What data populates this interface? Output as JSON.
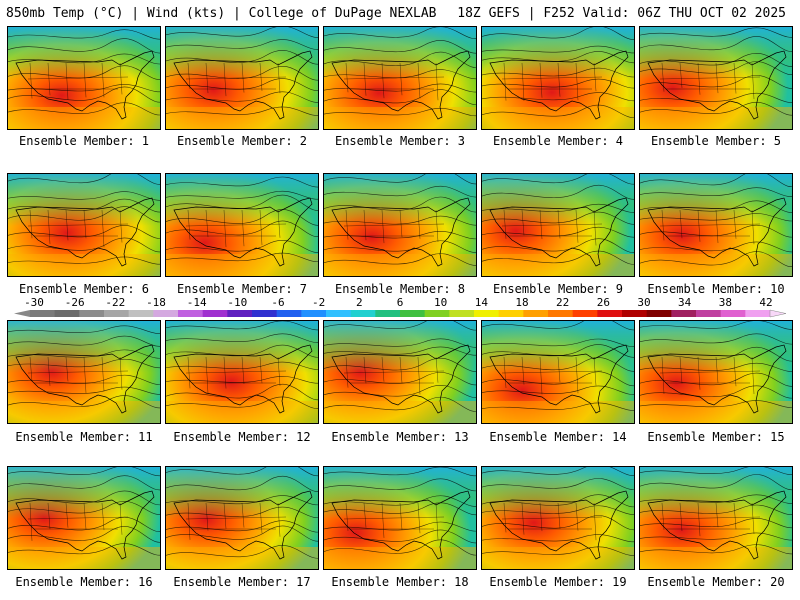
{
  "header": {
    "left": "850mb Temp (°C) | Wind (kts) | College of DuPage NEXLAB",
    "right": "18Z GEFS | F252 Valid: 06Z THU OCT 02 2025"
  },
  "panels": [
    {
      "caption": "Ensemble Member: 1"
    },
    {
      "caption": "Ensemble Member: 2"
    },
    {
      "caption": "Ensemble Member: 3"
    },
    {
      "caption": "Ensemble Member: 4"
    },
    {
      "caption": "Ensemble Member: 5"
    },
    {
      "caption": "Ensemble Member: 6"
    },
    {
      "caption": "Ensemble Member: 7"
    },
    {
      "caption": "Ensemble Member: 8"
    },
    {
      "caption": "Ensemble Member: 9"
    },
    {
      "caption": "Ensemble Member: 10"
    },
    {
      "caption": "Ensemble Member: 11"
    },
    {
      "caption": "Ensemble Member: 12"
    },
    {
      "caption": "Ensemble Member: 13"
    },
    {
      "caption": "Ensemble Member: 14"
    },
    {
      "caption": "Ensemble Member: 15"
    },
    {
      "caption": "Ensemble Member: 16"
    },
    {
      "caption": "Ensemble Member: 17"
    },
    {
      "caption": "Ensemble Member: 18"
    },
    {
      "caption": "Ensemble Member: 19"
    },
    {
      "caption": "Ensemble Member: 20"
    }
  ],
  "colorbar": {
    "labels": [
      "-30",
      "-26",
      "-22",
      "-18",
      "-14",
      "-10",
      "-6",
      "-2",
      "2",
      "6",
      "10",
      "14",
      "18",
      "22",
      "26",
      "30",
      "34",
      "38",
      "42"
    ],
    "colors": [
      "#7a7a7a",
      "#6b6b6b",
      "#8c8c8c",
      "#a6a6a6",
      "#c0c0c0",
      "#d4a8e0",
      "#c060e0",
      "#a030d0",
      "#6020c0",
      "#3030d0",
      "#2060f0",
      "#2090ff",
      "#30c0ff",
      "#20d0d0",
      "#20c080",
      "#40c040",
      "#80d020",
      "#c0e020",
      "#f0f000",
      "#ffd000",
      "#ffa000",
      "#ff7800",
      "#ff4000",
      "#e01010",
      "#b00000",
      "#800000",
      "#a02060",
      "#c040a0",
      "#e060d0",
      "#f0a0f0"
    ]
  }
}
